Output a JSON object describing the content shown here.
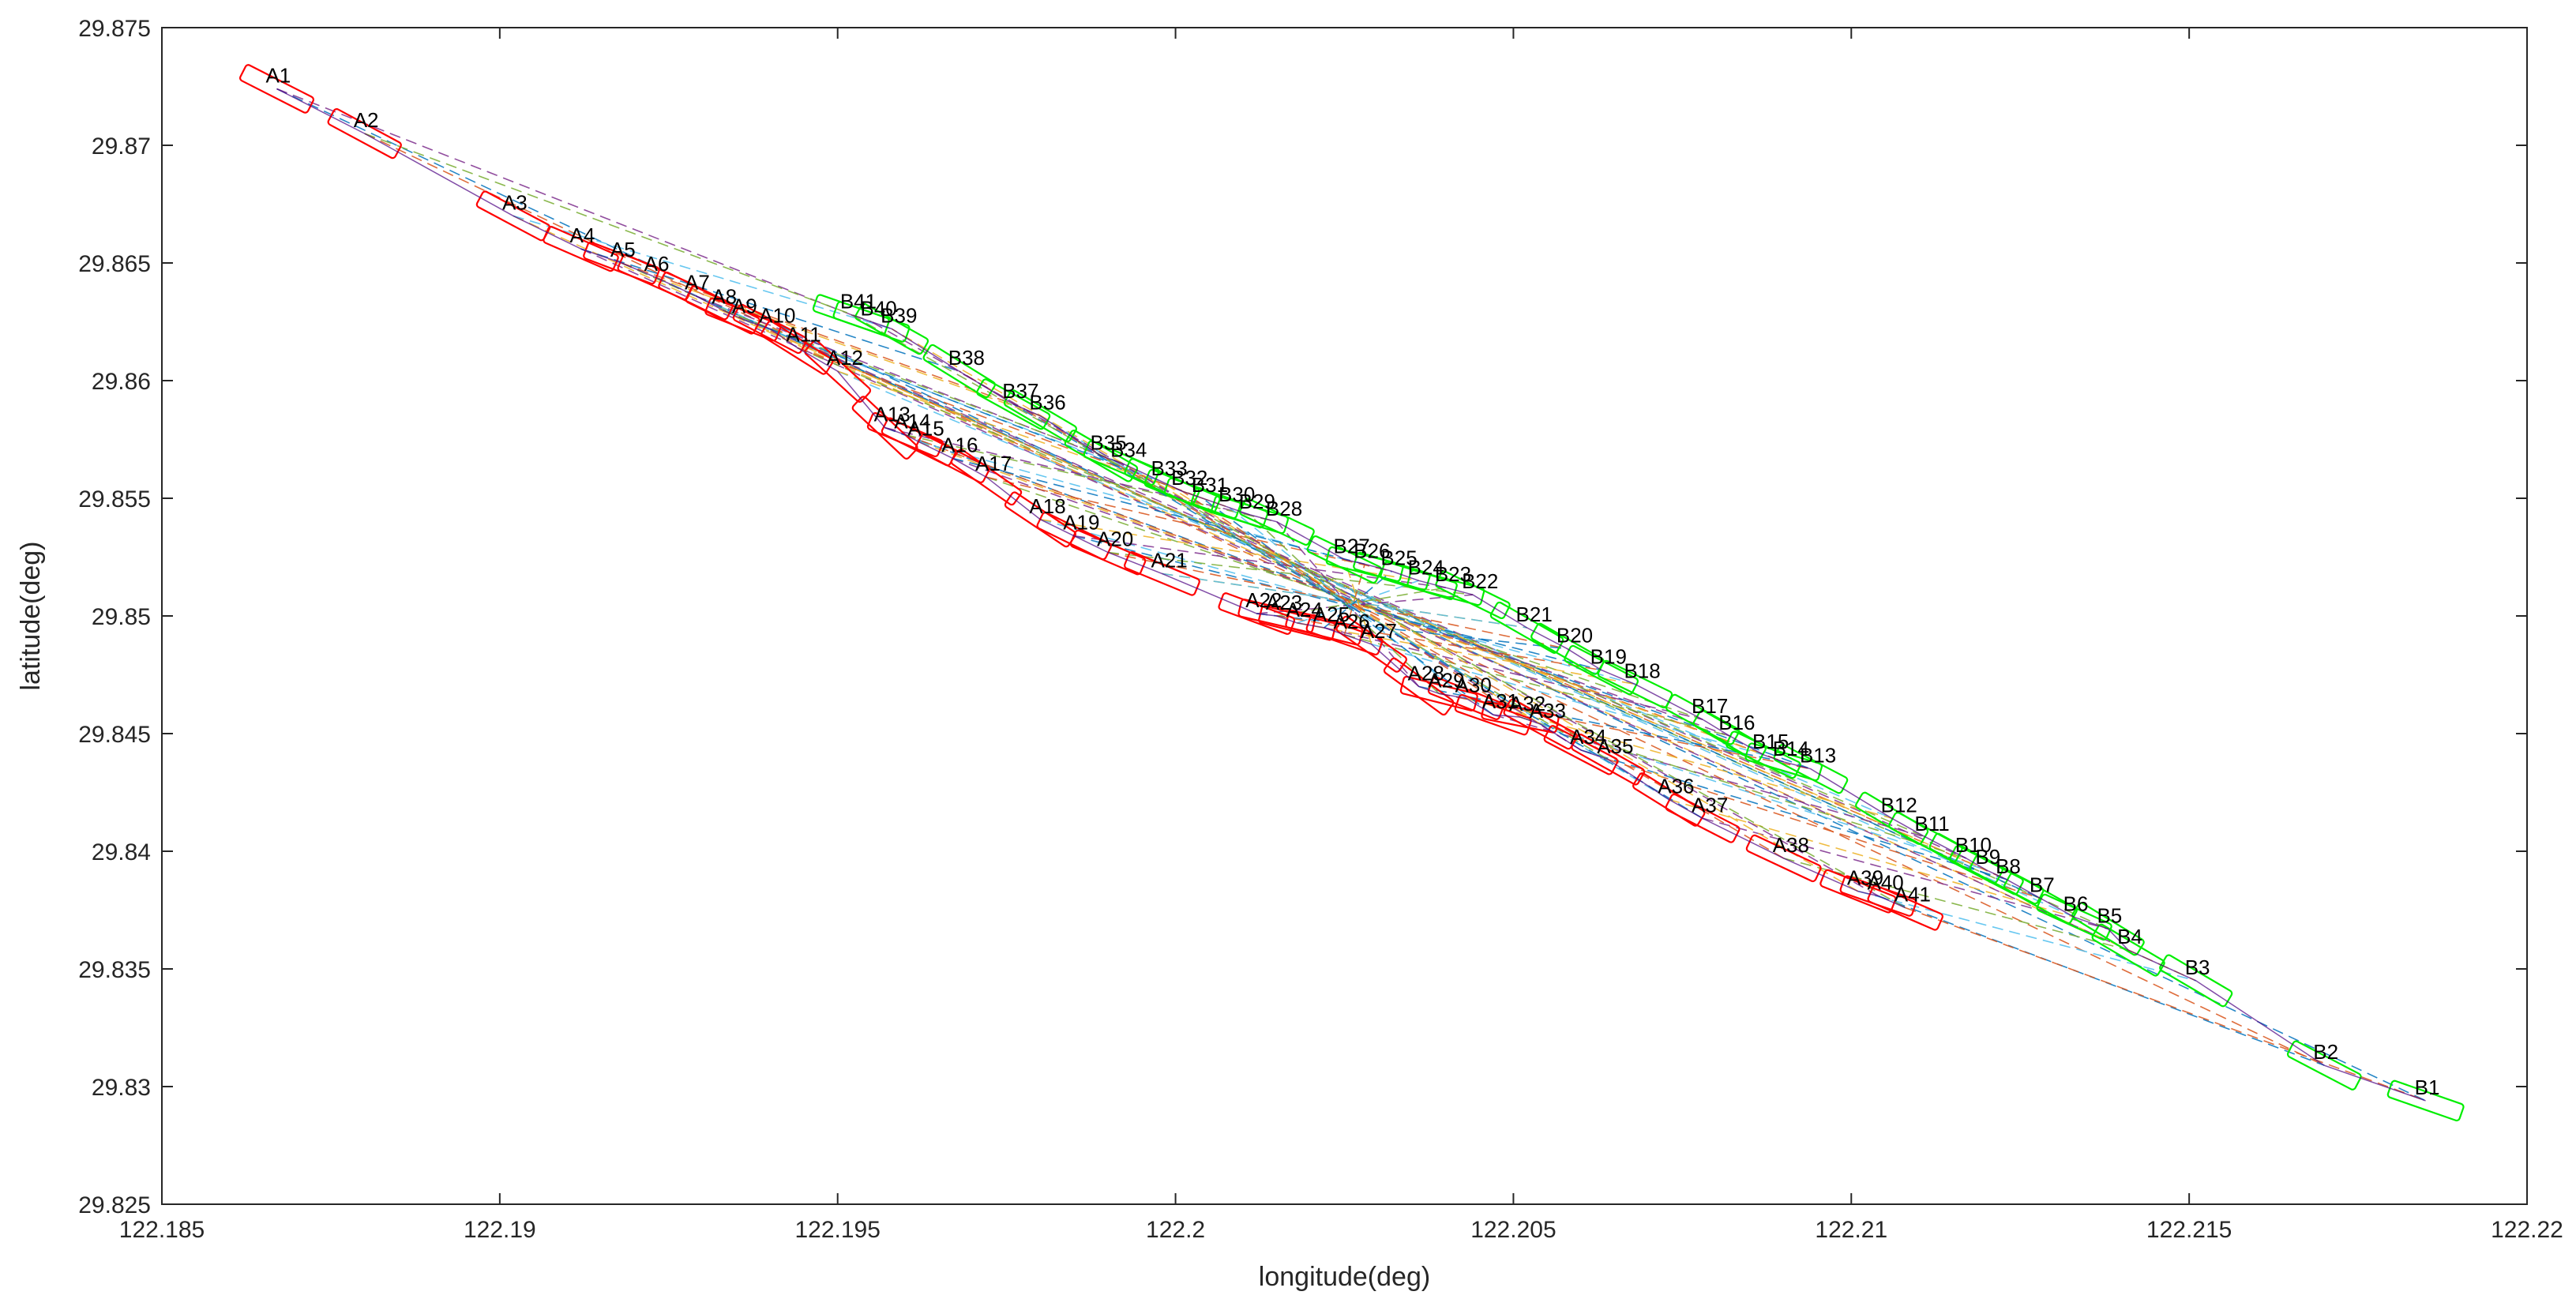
{
  "chart_data": {
    "type": "scatter",
    "xlabel": "longitude(deg)",
    "ylabel": "latitude(deg)",
    "xlim": [
      122.185,
      122.22
    ],
    "ylim": [
      29.825,
      29.875
    ],
    "xticks": [
      "122.185",
      "122.19",
      "122.195",
      "122.2",
      "122.205",
      "122.21",
      "122.215",
      "122.22"
    ],
    "yticks": [
      "29.825",
      "29.83",
      "29.835",
      "29.84",
      "29.845",
      "29.85",
      "29.855",
      "29.86",
      "29.865",
      "29.87",
      "29.875"
    ],
    "grid": false,
    "box": true,
    "colors": {
      "A": "#ff0000",
      "B": "#00ee00",
      "link1": "#0072bd",
      "link2": "#d95319",
      "link3": "#edb120",
      "link4": "#7e2f8e",
      "link5": "#77ac30",
      "link6": "#4dbeee"
    },
    "series": [
      {
        "group": "A",
        "points": [
          {
            "label": "A1",
            "x": 122.1867,
            "y": 29.8724
          },
          {
            "label": "A2",
            "x": 122.188,
            "y": 29.8705
          },
          {
            "label": "A3",
            "x": 122.1902,
            "y": 29.867
          },
          {
            "label": "A4",
            "x": 122.1912,
            "y": 29.8656
          },
          {
            "label": "A5",
            "x": 122.1918,
            "y": 29.865
          },
          {
            "label": "A6",
            "x": 122.1923,
            "y": 29.8644
          },
          {
            "label": "A7",
            "x": 122.1929,
            "y": 29.8636
          },
          {
            "label": "A8",
            "x": 122.1933,
            "y": 29.863
          },
          {
            "label": "A9",
            "x": 122.1936,
            "y": 29.8626
          },
          {
            "label": "A10",
            "x": 122.194,
            "y": 29.8622
          },
          {
            "label": "A11",
            "x": 122.1944,
            "y": 29.8614
          },
          {
            "label": "A12",
            "x": 122.195,
            "y": 29.8604
          },
          {
            "label": "A13",
            "x": 122.1957,
            "y": 29.858
          },
          {
            "label": "A14",
            "x": 122.196,
            "y": 29.8577
          },
          {
            "label": "A15",
            "x": 122.1962,
            "y": 29.8574
          },
          {
            "label": "A16",
            "x": 122.1967,
            "y": 29.8567
          },
          {
            "label": "A17",
            "x": 122.1972,
            "y": 29.8559
          },
          {
            "label": "A18",
            "x": 122.198,
            "y": 29.8541
          },
          {
            "label": "A19",
            "x": 122.1985,
            "y": 29.8534
          },
          {
            "label": "A20",
            "x": 122.199,
            "y": 29.8527
          },
          {
            "label": "A21",
            "x": 122.1998,
            "y": 29.8518
          },
          {
            "label": "A22",
            "x": 122.2012,
            "y": 29.8501
          },
          {
            "label": "A23",
            "x": 122.2015,
            "y": 29.85
          },
          {
            "label": "A24",
            "x": 122.2018,
            "y": 29.8497
          },
          {
            "label": "A25",
            "x": 122.2022,
            "y": 29.8495
          },
          {
            "label": "A26",
            "x": 122.2025,
            "y": 29.8492
          },
          {
            "label": "A27",
            "x": 122.2029,
            "y": 29.8488
          },
          {
            "label": "A28",
            "x": 122.2036,
            "y": 29.847
          },
          {
            "label": "A29",
            "x": 122.2039,
            "y": 29.8467
          },
          {
            "label": "A30",
            "x": 122.2043,
            "y": 29.8465
          },
          {
            "label": "A31",
            "x": 122.2047,
            "y": 29.8458
          },
          {
            "label": "A32",
            "x": 122.2051,
            "y": 29.8457
          },
          {
            "label": "A33",
            "x": 122.2054,
            "y": 29.8454
          },
          {
            "label": "A34",
            "x": 122.206,
            "y": 29.8443
          },
          {
            "label": "A35",
            "x": 122.2064,
            "y": 29.8439
          },
          {
            "label": "A36",
            "x": 122.2073,
            "y": 29.8422
          },
          {
            "label": "A37",
            "x": 122.2078,
            "y": 29.8414
          },
          {
            "label": "A38",
            "x": 122.209,
            "y": 29.8397
          },
          {
            "label": "A39",
            "x": 122.2101,
            "y": 29.8383
          },
          {
            "label": "A40",
            "x": 122.2104,
            "y": 29.8381
          },
          {
            "label": "A41",
            "x": 122.2108,
            "y": 29.8376
          }
        ]
      },
      {
        "group": "B",
        "points": [
          {
            "label": "B1",
            "x": 122.2185,
            "y": 29.8294
          },
          {
            "label": "B2",
            "x": 122.217,
            "y": 29.8309
          },
          {
            "label": "B3",
            "x": 122.2151,
            "y": 29.8345
          },
          {
            "label": "B4",
            "x": 122.2141,
            "y": 29.8358
          },
          {
            "label": "B5",
            "x": 122.2138,
            "y": 29.8367
          },
          {
            "label": "B6",
            "x": 122.2133,
            "y": 29.8372
          },
          {
            "label": "B7",
            "x": 122.2128,
            "y": 29.838
          },
          {
            "label": "B8",
            "x": 122.2123,
            "y": 29.8388
          },
          {
            "label": "B9",
            "x": 122.212,
            "y": 29.8392
          },
          {
            "label": "B10",
            "x": 122.2117,
            "y": 29.8397
          },
          {
            "label": "B11",
            "x": 122.2111,
            "y": 29.8406
          },
          {
            "label": "B12",
            "x": 122.2106,
            "y": 29.8414
          },
          {
            "label": "B13",
            "x": 122.2094,
            "y": 29.8435
          },
          {
            "label": "B14",
            "x": 122.209,
            "y": 29.8438
          },
          {
            "label": "B15",
            "x": 122.2087,
            "y": 29.8441
          },
          {
            "label": "B16",
            "x": 122.2082,
            "y": 29.8449
          },
          {
            "label": "B17",
            "x": 122.2078,
            "y": 29.8456
          },
          {
            "label": "B18",
            "x": 122.2068,
            "y": 29.8471
          },
          {
            "label": "B19",
            "x": 122.2063,
            "y": 29.8477
          },
          {
            "label": "B20",
            "x": 122.2058,
            "y": 29.8486
          },
          {
            "label": "B21",
            "x": 122.2052,
            "y": 29.8495
          },
          {
            "label": "B22",
            "x": 122.2044,
            "y": 29.8509
          },
          {
            "label": "B23",
            "x": 122.204,
            "y": 29.8512
          },
          {
            "label": "B24",
            "x": 122.2036,
            "y": 29.8515
          },
          {
            "label": "B25",
            "x": 122.2032,
            "y": 29.8519
          },
          {
            "label": "B26",
            "x": 122.2028,
            "y": 29.8522
          },
          {
            "label": "B27",
            "x": 122.2025,
            "y": 29.8524
          },
          {
            "label": "B28",
            "x": 122.2015,
            "y": 29.854
          },
          {
            "label": "B29",
            "x": 122.2011,
            "y": 29.8543
          },
          {
            "label": "B30",
            "x": 122.2008,
            "y": 29.8546
          },
          {
            "label": "B31",
            "x": 122.2004,
            "y": 29.855
          },
          {
            "label": "B32",
            "x": 122.2001,
            "y": 29.8553
          },
          {
            "label": "B33",
            "x": 122.1998,
            "y": 29.8557
          },
          {
            "label": "B34",
            "x": 122.1992,
            "y": 29.8565
          },
          {
            "label": "B35",
            "x": 122.1989,
            "y": 29.8568
          },
          {
            "label": "B36",
            "x": 122.198,
            "y": 29.8585
          },
          {
            "label": "B37",
            "x": 122.1976,
            "y": 29.859
          },
          {
            "label": "B38",
            "x": 122.1968,
            "y": 29.8604
          },
          {
            "label": "B39",
            "x": 122.1958,
            "y": 29.8622
          },
          {
            "label": "B40",
            "x": 122.1955,
            "y": 29.8625
          },
          {
            "label": "B41",
            "x": 122.1952,
            "y": 29.8628
          }
        ]
      }
    ]
  }
}
